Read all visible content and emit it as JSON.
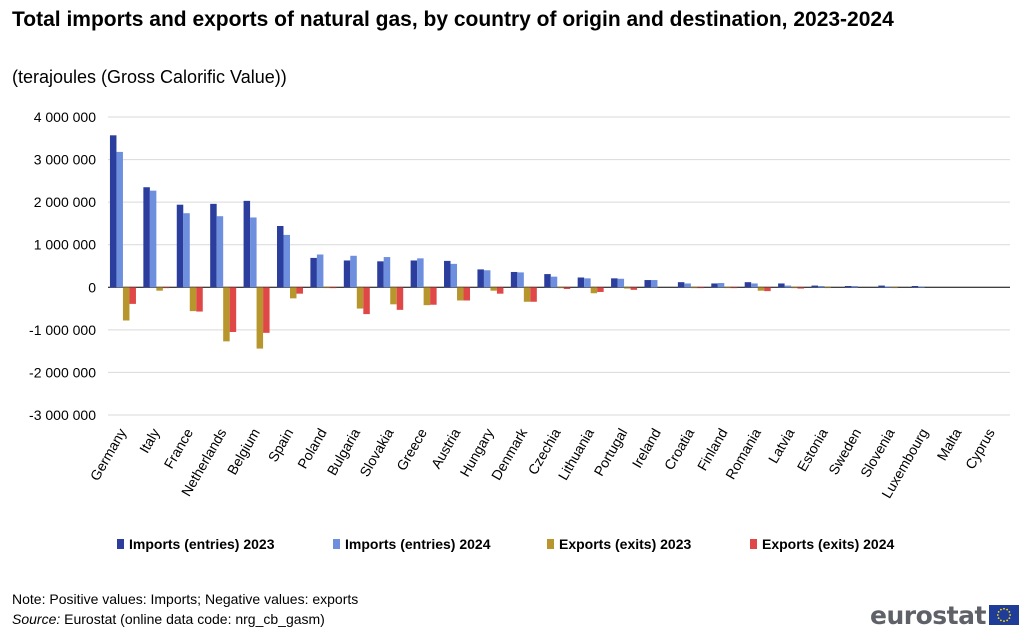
{
  "header": {
    "title": "Total imports and exports of natural gas, by country of origin and destination,  2023-2024",
    "subtitle": "(terajoules (Gross Calorific Value))"
  },
  "footer": {
    "note": "Note: Positive values: Imports; Negative values: exports",
    "source_label": "Source:",
    "source_text": " Eurostat (online data code: nrg_cb_gasm)",
    "logo_text": "eurostat"
  },
  "colors": {
    "imports_2023": "#2b3e9e",
    "imports_2024": "#6e8fde",
    "exports_2023": "#b8962e",
    "exports_2024": "#e04848",
    "grid": "#d9d9d9",
    "logo_flag": "#1f3c98",
    "logo_stars": "#ffdd00"
  },
  "chart_data": {
    "type": "bar",
    "categories": [
      "Germany",
      "Italy",
      "France",
      "Netherlands",
      "Belgium",
      "Spain",
      "Poland",
      "Bulgaria",
      "Slovakia",
      "Greece",
      "Austria",
      "Hungary",
      "Denmark",
      "Czechia",
      "Lithuania",
      "Portugal",
      "Ireland",
      "Croatia",
      "Finland",
      "Romania",
      "Latvia",
      "Estonia",
      "Sweden",
      "Slovenia",
      "Luxembourg",
      "Malta",
      "Cyprus"
    ],
    "series": [
      {
        "name": "Imports (entries) 2023",
        "values": [
          3570000,
          2350000,
          1940000,
          1960000,
          2030000,
          1440000,
          690000,
          630000,
          610000,
          630000,
          620000,
          420000,
          360000,
          310000,
          230000,
          210000,
          170000,
          120000,
          90000,
          120000,
          90000,
          40000,
          30000,
          40000,
          30000,
          0,
          0
        ]
      },
      {
        "name": "Imports (entries) 2024",
        "values": [
          3180000,
          2270000,
          1740000,
          1670000,
          1640000,
          1230000,
          770000,
          740000,
          710000,
          680000,
          550000,
          400000,
          350000,
          250000,
          210000,
          200000,
          170000,
          90000,
          100000,
          90000,
          40000,
          30000,
          30000,
          20000,
          20000,
          0,
          0
        ]
      },
      {
        "name": "Exports (exits) 2023",
        "values": [
          -780000,
          -80000,
          -560000,
          -1270000,
          -1440000,
          -260000,
          -10000,
          -500000,
          -400000,
          -420000,
          -310000,
          -80000,
          -340000,
          -20000,
          -140000,
          -30000,
          0,
          -20000,
          -10000,
          -80000,
          -20000,
          -10000,
          0,
          -10000,
          0,
          0,
          0
        ]
      },
      {
        "name": "Exports (exits) 2024",
        "values": [
          -390000,
          -20000,
          -570000,
          -1050000,
          -1070000,
          -150000,
          -20000,
          -630000,
          -530000,
          -410000,
          -310000,
          -150000,
          -340000,
          -40000,
          -110000,
          -60000,
          0,
          -20000,
          -20000,
          -90000,
          -30000,
          0,
          0,
          0,
          0,
          0,
          0
        ]
      }
    ],
    "ylim": [
      -3000000,
      4000000
    ],
    "yticks": [
      4000000,
      3000000,
      2000000,
      1000000,
      0,
      -1000000,
      -2000000,
      -3000000
    ],
    "ytick_labels": [
      "4 000 000",
      "3 000 000",
      "2 000 000",
      "1 000 000",
      "0",
      "-1 000 000",
      "-2 000 000",
      "-3 000 000"
    ],
    "grid": true,
    "legend_position": "bottom"
  }
}
